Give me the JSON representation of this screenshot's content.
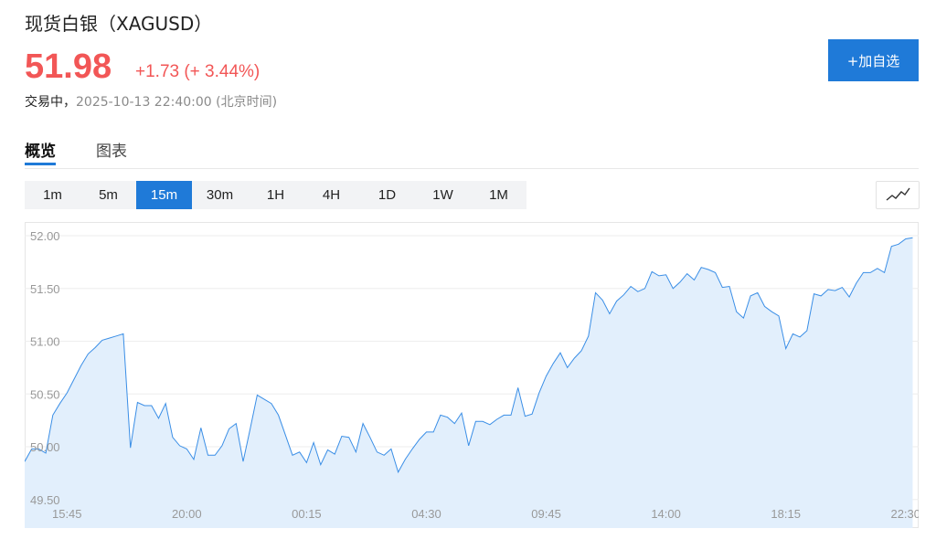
{
  "header": {
    "title": "现货白银（XAGUSD）",
    "price": "51.98",
    "change": "+1.73",
    "change_pct": "(+ 3.44%)",
    "status": "交易中，",
    "timestamp": "2025-10-13 22:40:00 (北京时间)",
    "watch_button": "+加自选"
  },
  "tabs": [
    "概览",
    "图表"
  ],
  "intervals": [
    "1m",
    "5m",
    "15m",
    "30m",
    "1H",
    "4H",
    "1D",
    "1W",
    "1M"
  ],
  "chart_data": {
    "type": "area",
    "color": "#3a8ee6",
    "fill": "#e2effc",
    "grid": true,
    "categories": [
      null,
      null,
      null,
      null,
      null,
      null,
      "15:45",
      null,
      null,
      null,
      null,
      null,
      null,
      null,
      null,
      null,
      null,
      null,
      null,
      null,
      null,
      null,
      null,
      "20:00",
      null,
      null,
      null,
      null,
      null,
      null,
      null,
      null,
      null,
      null,
      null,
      null,
      null,
      null,
      null,
      null,
      "00:15",
      null,
      null,
      null,
      null,
      null,
      null,
      null,
      null,
      null,
      null,
      null,
      null,
      null,
      null,
      null,
      null,
      "04:30",
      null,
      null,
      null,
      null,
      null,
      null,
      null,
      null,
      null,
      null,
      null,
      null,
      null,
      null,
      null,
      null,
      "09:45",
      null,
      null,
      null,
      null,
      null,
      null,
      null,
      null,
      null,
      null,
      null,
      null,
      null,
      null,
      null,
      null,
      "14:00",
      null,
      null,
      null,
      null,
      null,
      null,
      null,
      null,
      null,
      null,
      null,
      null,
      null,
      null,
      null,
      null,
      "18:15",
      null,
      null,
      null,
      null,
      null,
      null,
      null,
      null,
      null,
      null,
      null,
      null,
      null,
      null,
      null,
      null,
      "22:30",
      null
    ],
    "values": [
      49.86,
      49.98,
      49.98,
      49.94,
      50.3,
      50.41,
      50.51,
      50.64,
      50.77,
      50.88,
      50.94,
      51.01,
      51.03,
      51.05,
      51.07,
      49.99,
      50.42,
      50.39,
      50.39,
      50.27,
      50.41,
      50.09,
      50.01,
      49.98,
      49.88,
      50.18,
      49.92,
      49.92,
      50.01,
      50.17,
      50.22,
      49.86,
      50.17,
      50.49,
      50.45,
      50.41,
      50.3,
      50.11,
      49.92,
      49.95,
      49.85,
      50.04,
      49.83,
      49.97,
      49.93,
      50.1,
      50.09,
      49.95,
      50.22,
      50.09,
      49.95,
      49.92,
      49.98,
      49.76,
      49.88,
      49.98,
      50.07,
      50.14,
      50.14,
      50.3,
      50.28,
      50.22,
      50.32,
      50.01,
      50.24,
      50.24,
      50.21,
      50.26,
      50.3,
      50.3,
      50.56,
      50.29,
      50.31,
      50.51,
      50.67,
      50.79,
      50.89,
      50.75,
      50.84,
      50.91,
      51.05,
      51.46,
      51.39,
      51.26,
      51.38,
      51.44,
      51.52,
      51.47,
      51.5,
      51.66,
      51.62,
      51.63,
      51.5,
      51.56,
      51.64,
      51.58,
      51.7,
      51.68,
      51.65,
      51.51,
      51.52,
      51.28,
      51.22,
      51.43,
      51.46,
      51.33,
      51.28,
      51.24,
      50.93,
      51.07,
      51.04,
      51.1,
      51.45,
      51.43,
      51.49,
      51.48,
      51.51,
      51.42,
      51.55,
      51.65,
      51.65,
      51.69,
      51.65,
      51.9,
      51.92,
      51.97,
      51.98
    ],
    "ylim": [
      49.23,
      52.13
    ],
    "yticks": [
      {
        "value": 49.5,
        "label": "49.50"
      },
      {
        "value": 50,
        "label": "50.00"
      },
      {
        "value": 50.5,
        "label": "50.50"
      },
      {
        "value": 51,
        "label": "51.00"
      },
      {
        "value": 51.5,
        "label": "51.50"
      },
      {
        "value": 52,
        "label": "52.00"
      }
    ]
  }
}
